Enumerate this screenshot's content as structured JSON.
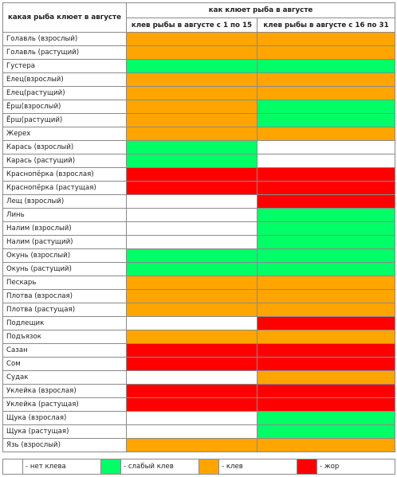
{
  "header": {
    "fish_column": "какая рыба клюет в августе",
    "group": "как клюет рыба в августе",
    "period1": "клев рыбы в августе с 1 по 15",
    "period2": "клев рыбы в августе с 16 по 31"
  },
  "levels": {
    "none": {
      "color": "#ffffff"
    },
    "weak": {
      "color": "#00ff66"
    },
    "bite": {
      "color": "#ffa500"
    },
    "feed": {
      "color": "#ff0000"
    }
  },
  "rows": [
    {
      "name": "Голавль (взрослый)",
      "p1": "bite",
      "p2": "bite"
    },
    {
      "name": "Голавль (растущий)",
      "p1": "bite",
      "p2": "bite"
    },
    {
      "name": "Густера",
      "p1": "weak",
      "p2": "weak"
    },
    {
      "name": "Елец(взрослый)",
      "p1": "bite",
      "p2": "bite"
    },
    {
      "name": "Елец(растущий)",
      "p1": "bite",
      "p2": "bite"
    },
    {
      "name": "Ёрш(взрослый)",
      "p1": "bite",
      "p2": "weak"
    },
    {
      "name": "Ёрш(растущий)",
      "p1": "bite",
      "p2": "weak"
    },
    {
      "name": "Жерех",
      "p1": "bite",
      "p2": "bite"
    },
    {
      "name": "Карась (взрослый)",
      "p1": "weak",
      "p2": "none"
    },
    {
      "name": "Карась (растущий)",
      "p1": "weak",
      "p2": "none"
    },
    {
      "name": "Краснопёрка (взрослая)",
      "p1": "feed",
      "p2": "feed"
    },
    {
      "name": "Краснопёрка (растущая)",
      "p1": "feed",
      "p2": "feed"
    },
    {
      "name": "Лещ (взрослый)",
      "p1": "none",
      "p2": "feed"
    },
    {
      "name": "Линь",
      "p1": "none",
      "p2": "weak"
    },
    {
      "name": "Налим (взрослый)",
      "p1": "none",
      "p2": "weak"
    },
    {
      "name": "Налим (растущий)",
      "p1": "none",
      "p2": "weak"
    },
    {
      "name": "Окунь (взрослый)",
      "p1": "weak",
      "p2": "weak"
    },
    {
      "name": "Окунь (растущий)",
      "p1": "weak",
      "p2": "weak"
    },
    {
      "name": "Пескарь",
      "p1": "bite",
      "p2": "bite"
    },
    {
      "name": "Плотва (взрослая)",
      "p1": "bite",
      "p2": "bite"
    },
    {
      "name": "Плотва (растущая)",
      "p1": "bite",
      "p2": "bite"
    },
    {
      "name": "Подлещик",
      "p1": "none",
      "p2": "feed"
    },
    {
      "name": "Подъязок",
      "p1": "bite",
      "p2": "bite"
    },
    {
      "name": "Сазан",
      "p1": "feed",
      "p2": "feed"
    },
    {
      "name": "Сом",
      "p1": "feed",
      "p2": "feed"
    },
    {
      "name": "Судак",
      "p1": "none",
      "p2": "bite"
    },
    {
      "name": "Уклейка (взрослая)",
      "p1": "feed",
      "p2": "feed"
    },
    {
      "name": "Уклейка (растущая)",
      "p1": "feed",
      "p2": "feed"
    },
    {
      "name": "Щука (взрослая)",
      "p1": "none",
      "p2": "weak"
    },
    {
      "name": "Щука (растущая)",
      "p1": "none",
      "p2": "weak"
    },
    {
      "name": "Язь (взрослый)",
      "p1": "bite",
      "p2": "bite"
    }
  ],
  "legend": [
    {
      "level": "none",
      "label": "- нет клева"
    },
    {
      "level": "weak",
      "label": "- слабый клев"
    },
    {
      "level": "bite",
      "label": "- клев"
    },
    {
      "level": "feed",
      "label": "- жор"
    }
  ]
}
